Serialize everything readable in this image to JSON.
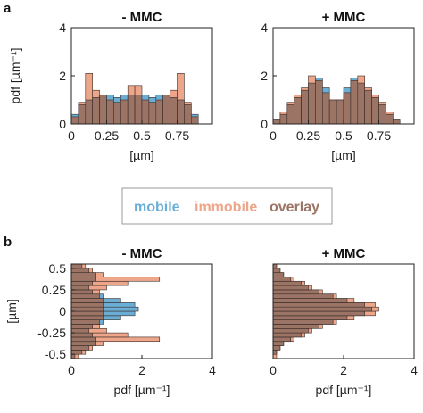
{
  "colors": {
    "mobile": "#6aaed6",
    "immobile": "#eda68a",
    "overlay": "#9b7466",
    "edge": "#3a2d28"
  },
  "legend": {
    "mobile": "mobile",
    "immobile": "immobile",
    "overlay": "overlay"
  },
  "panel_labels": {
    "a": "a",
    "b": "b"
  },
  "chart_data": [
    {
      "panel": "a",
      "type": "bar",
      "orientation": "vertical",
      "title": "- MMC",
      "xlabel": "[µm]",
      "ylabel": "pdf [µm⁻¹]",
      "xlim": [
        0,
        1
      ],
      "ylim": [
        0,
        4
      ],
      "xticks": [
        "0",
        "0.25",
        "0.5",
        "0.75"
      ],
      "xtick_values": [
        0,
        0.25,
        0.5,
        0.75
      ],
      "yticks": [
        "0",
        "2",
        "4"
      ],
      "ytick_values": [
        0,
        2,
        4
      ],
      "bin_start": 0.025,
      "bin_width": 0.05,
      "series": [
        {
          "name": "mobile",
          "values": [
            0.4,
            0.8,
            1.0,
            1.1,
            1.2,
            1.2,
            1.1,
            1.2,
            1.2,
            1.2,
            1.2,
            1.1,
            1.2,
            1.2,
            1.1,
            1.0,
            0.8,
            0.4
          ]
        },
        {
          "name": "immobile",
          "values": [
            0.3,
            0.9,
            2.1,
            1.4,
            1.2,
            1.0,
            0.9,
            1.0,
            1.6,
            1.6,
            1.0,
            0.9,
            1.0,
            1.2,
            1.4,
            2.1,
            0.9,
            0.3
          ]
        }
      ]
    },
    {
      "panel": "a",
      "type": "bar",
      "orientation": "vertical",
      "title": "+ MMC",
      "xlabel": "[µm]",
      "ylabel": "",
      "xlim": [
        0,
        1
      ],
      "ylim": [
        0,
        4
      ],
      "xticks": [
        "0",
        "0.25",
        "0.5",
        "0.75"
      ],
      "xtick_values": [
        0,
        0.25,
        0.5,
        0.75
      ],
      "yticks": [
        "0",
        "2",
        "4"
      ],
      "ytick_values": [
        0,
        2,
        4
      ],
      "bin_start": 0.025,
      "bin_width": 0.05,
      "series": [
        {
          "name": "mobile",
          "values": [
            0.2,
            0.4,
            0.8,
            1.1,
            1.4,
            1.7,
            1.9,
            1.5,
            1.0,
            1.0,
            1.5,
            1.9,
            1.7,
            1.4,
            1.1,
            0.8,
            0.4,
            0.2
          ]
        },
        {
          "name": "immobile",
          "values": [
            0.2,
            0.5,
            0.9,
            1.2,
            1.5,
            2.0,
            1.8,
            1.3,
            1.0,
            1.0,
            1.3,
            1.8,
            2.0,
            1.5,
            1.2,
            0.9,
            0.5,
            0.2
          ]
        }
      ]
    },
    {
      "panel": "b",
      "type": "bar",
      "orientation": "horizontal",
      "title": "- MMC",
      "xlabel": "pdf [µm⁻¹]",
      "ylabel": "[µm]",
      "xlim": [
        0,
        4
      ],
      "ylim": [
        -0.55,
        0.55
      ],
      "xticks": [
        "0",
        "2",
        "4"
      ],
      "xtick_values": [
        0,
        2,
        4
      ],
      "yticks": [
        "0.5",
        "0.25",
        "0",
        "-0.25",
        "-0.5"
      ],
      "ytick_values": [
        0.5,
        0.25,
        0,
        -0.25,
        -0.5
      ],
      "bin_start": -0.525,
      "bin_width": 0.05,
      "series": [
        {
          "name": "mobile",
          "values": [
            0.1,
            0.3,
            0.5,
            0.7,
            0.7,
            0.6,
            0.5,
            0.6,
            0.9,
            1.4,
            1.8,
            1.9,
            1.8,
            1.4,
            0.9,
            0.6,
            0.5,
            0.6,
            0.7,
            0.7,
            0.5,
            0.3
          ]
        },
        {
          "name": "immobile",
          "values": [
            0.2,
            0.4,
            0.6,
            0.9,
            2.5,
            1.6,
            1.0,
            0.8,
            0.8,
            0.9,
            0.9,
            0.9,
            0.9,
            0.9,
            0.8,
            0.8,
            1.0,
            1.6,
            2.5,
            0.9,
            0.6,
            0.4
          ]
        }
      ]
    },
    {
      "panel": "b",
      "type": "bar",
      "orientation": "horizontal",
      "title": "+ MMC",
      "xlabel": "pdf [µm⁻¹]",
      "ylabel": "",
      "xlim": [
        0,
        4
      ],
      "ylim": [
        -0.55,
        0.55
      ],
      "xticks": [
        "0",
        "2",
        "4"
      ],
      "xtick_values": [
        0,
        2,
        4
      ],
      "yticks": [],
      "ytick_values": [],
      "bin_start": -0.525,
      "bin_width": 0.05,
      "series": [
        {
          "name": "mobile",
          "values": [
            0.0,
            0.1,
            0.2,
            0.3,
            0.5,
            0.8,
            1.0,
            1.3,
            1.7,
            2.1,
            2.6,
            2.8,
            2.6,
            2.1,
            1.7,
            1.3,
            1.0,
            0.8,
            0.5,
            0.3,
            0.2,
            0.1
          ]
        },
        {
          "name": "immobile",
          "values": [
            0.1,
            0.1,
            0.2,
            0.3,
            0.6,
            0.9,
            1.1,
            1.4,
            1.8,
            2.3,
            2.9,
            3.0,
            2.9,
            2.3,
            1.8,
            1.4,
            1.1,
            0.9,
            0.6,
            0.3,
            0.2,
            0.1
          ]
        }
      ]
    }
  ]
}
